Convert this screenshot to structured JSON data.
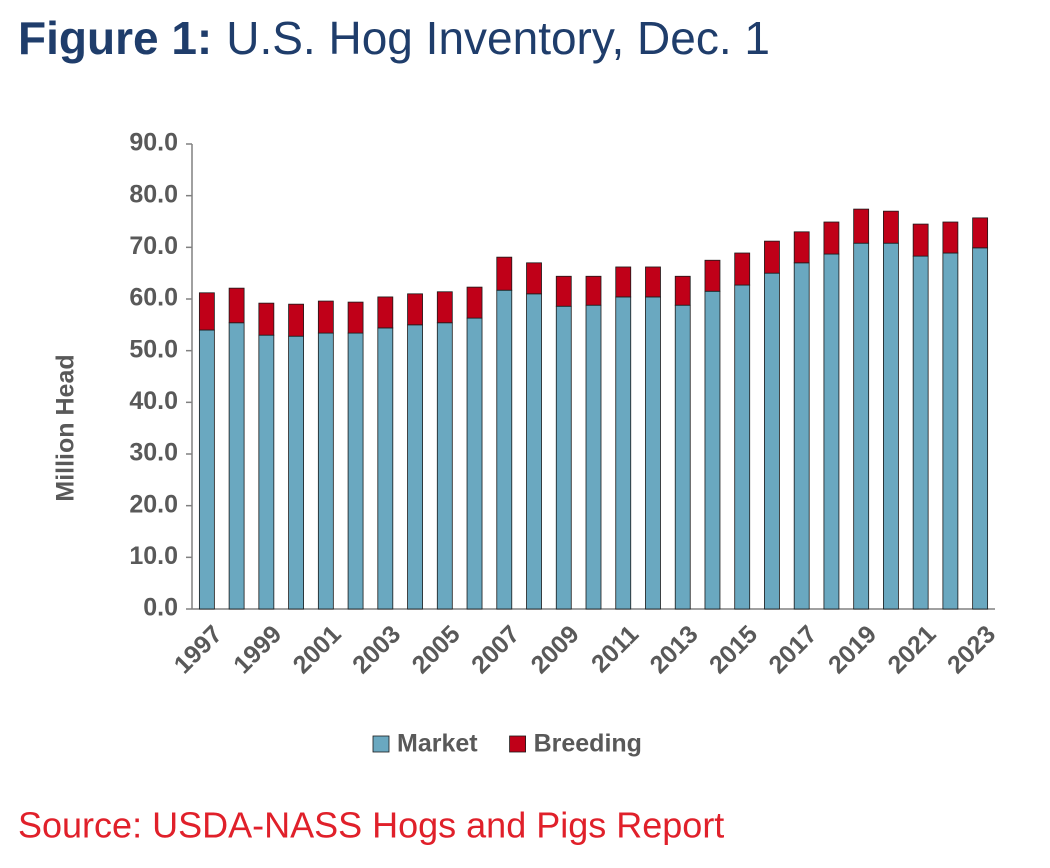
{
  "chart_data": {
    "type": "stacked_bar",
    "figure_label": "Figure 1:",
    "title": "U.S. Hog Inventory, Dec. 1",
    "y_label": "Million Head",
    "source": "Source: USDA-NASS Hogs and Pigs Report",
    "categories": [
      "1997",
      null,
      "1999",
      null,
      "2001",
      null,
      "2003",
      null,
      "2005",
      null,
      "2007",
      null,
      "2009",
      null,
      "2011",
      null,
      "2013",
      null,
      "2015",
      null,
      "2017",
      null,
      "2019",
      null,
      "2021",
      null,
      "2023"
    ],
    "series": [
      {
        "name": "Market",
        "color": "#6aa8c0",
        "values": [
          54.0,
          55.4,
          53.0,
          52.8,
          53.4,
          53.4,
          54.4,
          55.0,
          55.4,
          56.3,
          61.7,
          61.0,
          58.6,
          58.8,
          60.4,
          60.4,
          58.8,
          61.5,
          62.7,
          65.0,
          67.0,
          68.7,
          70.8,
          70.8,
          68.3,
          68.9,
          69.9
        ]
      },
      {
        "name": "Breeding",
        "color": "#c00018",
        "values": [
          7.2,
          6.7,
          6.2,
          6.2,
          6.2,
          6.0,
          6.0,
          6.0,
          6.0,
          6.0,
          6.4,
          6.0,
          5.8,
          5.6,
          5.8,
          5.8,
          5.6,
          6.0,
          6.2,
          6.2,
          6.0,
          6.2,
          6.6,
          6.2,
          6.2,
          6.0,
          5.8
        ]
      }
    ],
    "ylim": [
      0,
      90
    ],
    "yticks": [
      {
        "value": 0,
        "label": "0.0"
      },
      {
        "value": 10,
        "label": "10.0"
      },
      {
        "value": 20,
        "label": "20.0"
      },
      {
        "value": 30,
        "label": "30.0"
      },
      {
        "value": 40,
        "label": "40.0"
      },
      {
        "value": 50,
        "label": "50.0"
      },
      {
        "value": 60,
        "label": "60.0"
      },
      {
        "value": 70,
        "label": "70.0"
      },
      {
        "value": 80,
        "label": "80.0"
      },
      {
        "value": 90,
        "label": "90.0"
      }
    ],
    "legend": "bottom"
  }
}
